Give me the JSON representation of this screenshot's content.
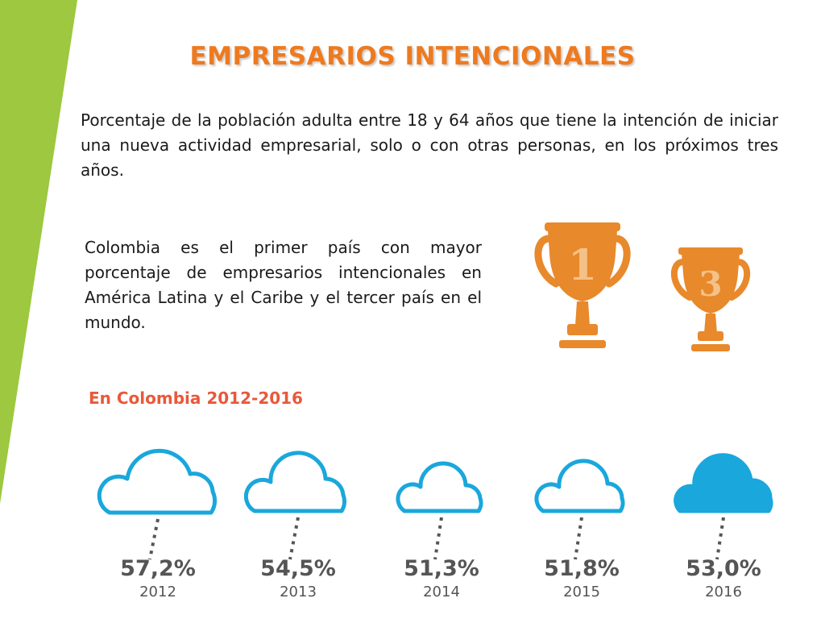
{
  "slide": {
    "title": "EMPRESARIOS INTENCIONALES",
    "intro": "Porcentaje de la población adulta entre 18 y 64 años que tiene la intención de iniciar una nueva actividad empresarial, solo o con otras personas, en los próximos tres años.",
    "claim": "Colombia es el primer país con mayor porcentaje de empresarios intencionales en América Latina y el Caribe y el tercer país en el mundo.",
    "trophies": [
      {
        "number": "1"
      },
      {
        "number": "3"
      }
    ],
    "subtitle": "En Colombia 2012-2016",
    "clouds": [
      {
        "percent": "57,2%",
        "year": "2012",
        "filled": false
      },
      {
        "percent": "54,5%",
        "year": "2013",
        "filled": false
      },
      {
        "percent": "51,3%",
        "year": "2014",
        "filled": false
      },
      {
        "percent": "51,8%",
        "year": "2015",
        "filled": false
      },
      {
        "percent": "53,0%",
        "year": "2016",
        "filled": true
      }
    ]
  },
  "colors": {
    "accent_green": "#9dc83f",
    "title_orange": "#ee7a1f",
    "trophy_orange": "#e8892b",
    "subtitle_red": "#e8593a",
    "cloud_blue": "#1aa7dc",
    "label_gray": "#555555"
  }
}
